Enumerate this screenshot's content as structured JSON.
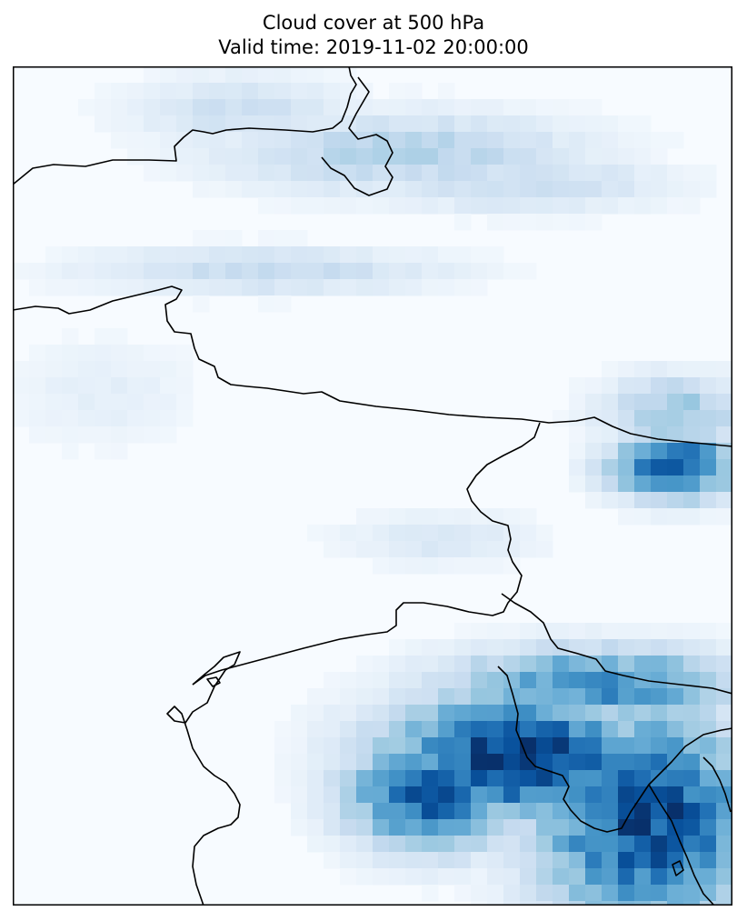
{
  "figure": {
    "title_line_1": "Cloud cover at 500 hPa",
    "title_line_2": "Valid time: 2019-11-02 20:00:00"
  },
  "map": {
    "variable": "cloud cover",
    "pressure_level": "500 hPa",
    "colormap": "Blues",
    "background_color": "#f7fbff",
    "coastline_color": "#000000",
    "frame_color": "#000000",
    "cloud_regions": [
      {
        "name": "southeast-overcast",
        "intensity": 0.95
      },
      {
        "name": "east-edge-patch",
        "intensity": 0.85
      },
      {
        "name": "north-band",
        "intensity": 0.3
      },
      {
        "name": "middle-band",
        "intensity": 0.25
      },
      {
        "name": "west-haze",
        "intensity": 0.1
      }
    ]
  }
}
